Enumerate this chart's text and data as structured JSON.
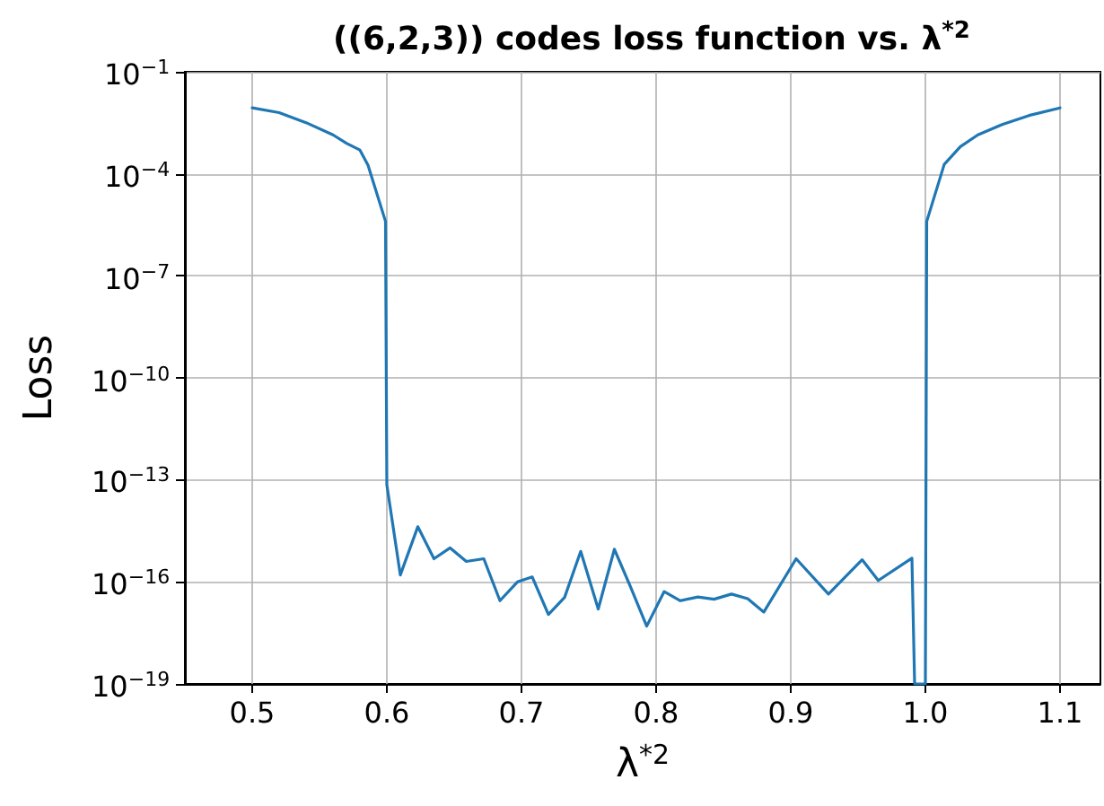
{
  "chart_data": {
    "type": "line",
    "title": "((6,2,3)) codes loss function vs. λ$^{*2}$",
    "xlabel": "λ$^{*2}$",
    "ylabel": "Loss",
    "series": [
      {
        "color": "#1f77b4",
        "x": [
          0.5,
          0.52,
          0.54,
          0.56,
          0.57,
          0.58,
          0.586,
          0.599,
          0.6,
          0.61,
          0.623,
          0.635,
          0.647,
          0.659,
          0.672,
          0.684,
          0.697,
          0.708,
          0.72,
          0.732,
          0.744,
          0.757,
          0.769,
          0.781,
          0.793,
          0.806,
          0.818,
          0.831,
          0.843,
          0.856,
          0.868,
          0.88,
          0.904,
          0.928,
          0.953,
          0.965,
          0.99,
          0.992,
          1.0,
          1.001,
          1.014,
          1.026,
          1.039,
          1.057,
          1.077,
          1.1
        ],
        "values": [
          0.0087,
          0.0063,
          0.0032,
          0.0014,
          0.00079,
          0.0005,
          0.00018,
          4e-06,
          7.1e-14,
          1.6e-16,
          4.2e-15,
          4.8e-16,
          1e-15,
          4e-16,
          4.8e-16,
          2.8e-17,
          1e-16,
          1.4e-16,
          1.1e-17,
          3.5e-17,
          7.9e-16,
          1.6e-17,
          9.1e-16,
          7.1e-17,
          5e-18,
          5.2e-17,
          2.8e-17,
          3.6e-17,
          3.1e-17,
          4.4e-17,
          3.2e-17,
          1.3e-17,
          4.8e-16,
          4.4e-17,
          4.5e-16,
          1.1e-16,
          5e-16,
          1e-19,
          1e-19,
          4e-06,
          0.00019,
          0.00063,
          0.0014,
          0.0028,
          0.0052,
          0.0087
        ]
      }
    ],
    "xlim": [
      0.45,
      1.13
    ],
    "xticks": [
      0.5,
      0.6,
      0.7,
      0.8,
      0.9,
      {
        "value": 1.0,
        "label": "1.0"
      },
      1.1
    ],
    "ylim": [
      1e-19,
      0.1
    ],
    "yticks": [
      {
        "value": 0.1,
        "label": "10$^{−1}$"
      },
      {
        "value": 0.0001,
        "label": "10$^{−4}$"
      },
      {
        "value": 1e-07,
        "label": "10$^{−7}$"
      },
      {
        "value": 1e-10,
        "label": "10$^{−10}$"
      },
      {
        "value": 1e-13,
        "label": "10$^{−13}$"
      },
      {
        "value": 1e-16,
        "label": "10$^{−16}$"
      },
      {
        "value": 1e-19,
        "label": "10$^{−19}$"
      }
    ],
    "log": "y",
    "grid": true,
    "marker": "none",
    "line_style": "solid"
  }
}
